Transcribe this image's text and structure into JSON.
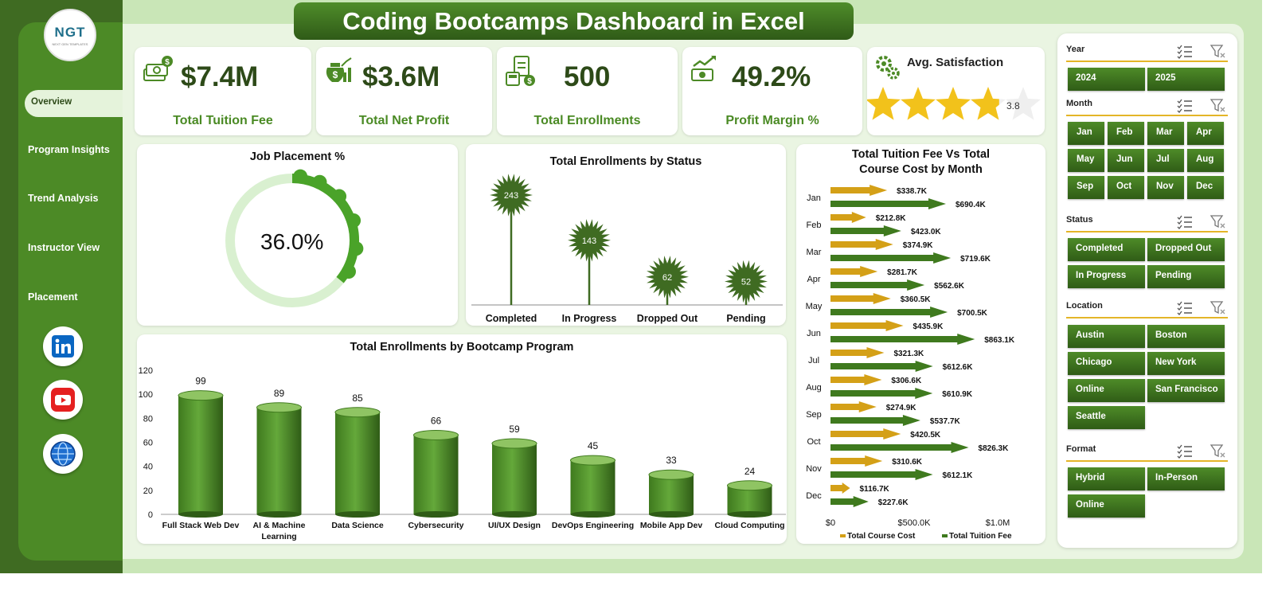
{
  "title": "Coding Bootcamps Dashboard in Excel",
  "logo": {
    "text": "NGT",
    "subtitle": "NEXT GEN TEMPLATES"
  },
  "nav": {
    "active": "Overview",
    "items": [
      "Program Insights",
      "Trend Analysis",
      "Instructor View",
      "Placement"
    ]
  },
  "social": {
    "linkedin_icon": "linkedin-icon",
    "youtube_icon": "youtube-icon",
    "web_icon": "globe-icon"
  },
  "kpis": [
    {
      "value": "$7.4M",
      "label": "Total Tuition Fee",
      "icon": "money-stack-icon"
    },
    {
      "value": "$3.6M",
      "label": "Total Net Profit",
      "icon": "profit-bag-icon"
    },
    {
      "value": "500",
      "label": "Total Enrollments",
      "icon": "enrollment-clipboard-icon"
    },
    {
      "value": "49.2%",
      "label": "Profit Margin %",
      "icon": "cash-growth-icon"
    }
  ],
  "satisfaction": {
    "label": "Avg. Satisfaction",
    "value": "3.8",
    "rating": 3.8,
    "max": 5,
    "icon": "gears-icon"
  },
  "colors": {
    "dark_green": "#3f6b22",
    "mid_green": "#4c8a26",
    "light_green": "#c9e6b7",
    "gold": "#d4a017",
    "arrow_green": "#3f7a1e"
  },
  "chart_data": [
    {
      "type": "donut",
      "title": "Job Placement %",
      "value": 36.0,
      "label": "36.0%"
    },
    {
      "type": "lollipop",
      "title": "Total Enrollments  by Status",
      "categories": [
        "Completed",
        "In Progress",
        "Dropped Out",
        "Pending"
      ],
      "values": [
        243,
        143,
        62,
        52
      ]
    },
    {
      "type": "bar",
      "title": "Total Enrollments  by Bootcamp Program",
      "categories": [
        "Full Stack Web Dev",
        "AI & Machine Learning",
        "Data Science",
        "Cybersecurity",
        "UI/UX Design",
        "DevOps Engineering",
        "Mobile App Dev",
        "Cloud Computing"
      ],
      "values": [
        99,
        89,
        85,
        66,
        59,
        45,
        33,
        24
      ],
      "yticks": [
        "0",
        "20",
        "40",
        "60",
        "80",
        "100",
        "120"
      ],
      "ylim": [
        0,
        120
      ]
    },
    {
      "type": "bar",
      "orientation": "horizontal",
      "title": "Total Tuition Fee Vs Total Course Cost by Month",
      "categories": [
        "Jan",
        "Feb",
        "Mar",
        "Apr",
        "May",
        "Jun",
        "Jul",
        "Aug",
        "Sep",
        "Oct",
        "Nov",
        "Dec"
      ],
      "series": [
        {
          "name": "Total Course Cost",
          "values": [
            338.7,
            212.8,
            374.9,
            281.7,
            360.5,
            435.9,
            321.3,
            306.6,
            274.9,
            420.5,
            310.6,
            116.7
          ],
          "labels": [
            "$338.7K",
            "$212.8K",
            "$374.9K",
            "$281.7K",
            "$360.5K",
            "$435.9K",
            "$321.3K",
            "$306.6K",
            "$274.9K",
            "$420.5K",
            "$310.6K",
            "$116.7K"
          ],
          "color": "#d4a017"
        },
        {
          "name": "Total Tuition Fee",
          "values": [
            690.4,
            423.0,
            719.6,
            562.6,
            700.5,
            863.1,
            612.6,
            610.9,
            537.7,
            826.3,
            612.1,
            227.6
          ],
          "labels": [
            "$690.4K",
            "$423.0K",
            "$719.6K",
            "$562.6K",
            "$700.5K",
            "$863.1K",
            "$612.6K",
            "$610.9K",
            "$537.7K",
            "$826.3K",
            "$612.1K",
            "$227.6K"
          ],
          "color": "#3f7a1e"
        }
      ],
      "xticks": [
        "$0",
        "$500.0K",
        "$1.0M"
      ],
      "xlim": [
        0,
        1000
      ]
    }
  ],
  "filters": {
    "year": {
      "title": "Year",
      "options": [
        "2024",
        "2025"
      ]
    },
    "month": {
      "title": "Month",
      "options": [
        "Jan",
        "Feb",
        "Mar",
        "Apr",
        "May",
        "Jun",
        "Jul",
        "Aug",
        "Sep",
        "Oct",
        "Nov",
        "Dec"
      ]
    },
    "status": {
      "title": "Status",
      "options": [
        "Completed",
        "Dropped Out",
        "In Progress",
        "Pending"
      ]
    },
    "location": {
      "title": "Location",
      "options": [
        "Austin",
        "Boston",
        "Chicago",
        "New York",
        "Online",
        "San Francisco",
        "Seattle"
      ]
    },
    "format": {
      "title": "Format",
      "options": [
        "Hybrid",
        "In-Person",
        "Online"
      ]
    }
  }
}
